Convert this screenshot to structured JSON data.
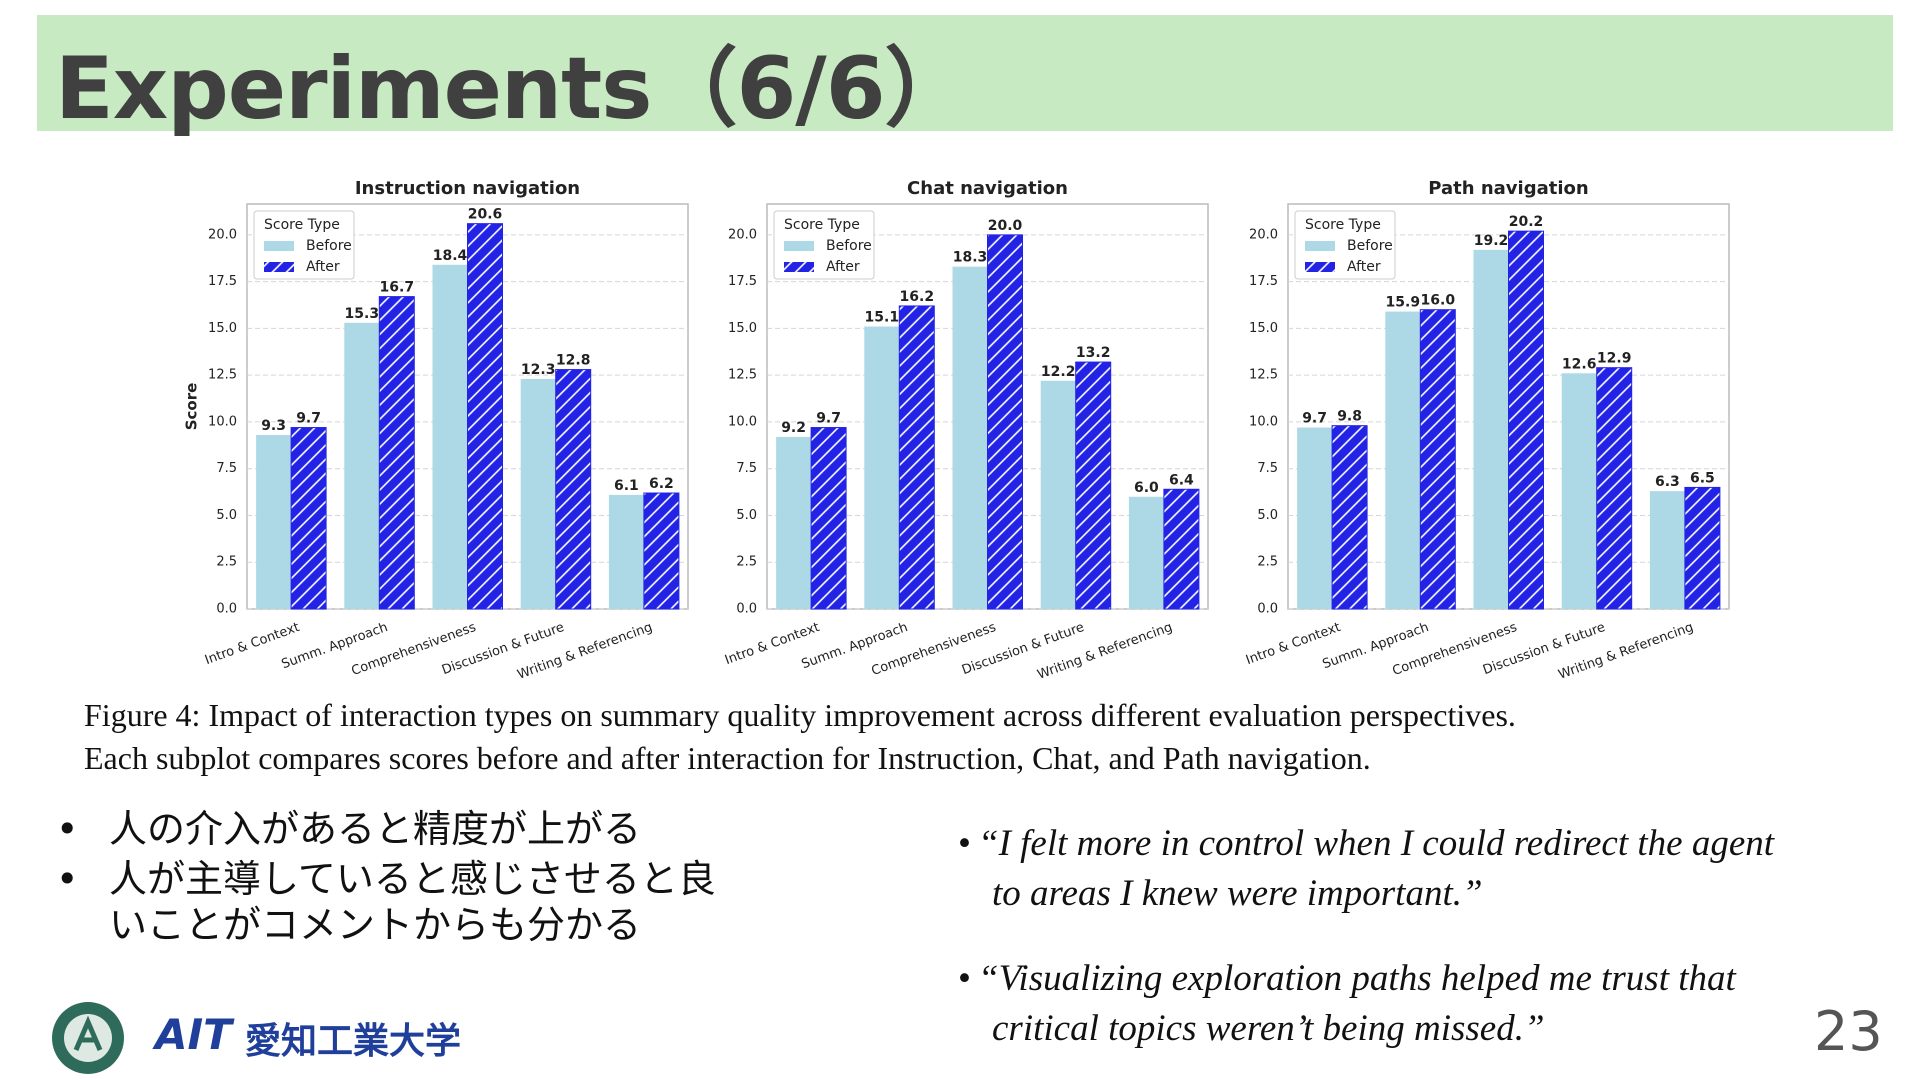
{
  "title": "Experiments（6/6）",
  "chart_data": [
    {
      "type": "bar",
      "title": "Instruction navigation",
      "ylabel": "Score",
      "legend_title": "Score Type",
      "legend": "upper left",
      "grid": true,
      "categories": [
        "Intro & Context",
        "Summ. Approach",
        "Comprehensiveness",
        "Discussion & Future",
        "Writing & Referencing"
      ],
      "series": [
        {
          "name": "Before",
          "color": "#add8e6",
          "hatch": false,
          "values": [
            9.3,
            15.3,
            18.4,
            12.3,
            6.1
          ],
          "value_labels": [
            "9.3",
            "15.3",
            "18.4",
            "12.3",
            "6.1"
          ]
        },
        {
          "name": "After",
          "color": "#2323e6",
          "hatch": true,
          "values": [
            9.7,
            16.7,
            20.6,
            12.8,
            6.2
          ],
          "value_labels": [
            "9.7",
            "16.7",
            "20.6",
            "12.8",
            "6.2"
          ]
        }
      ],
      "ylim": [
        0,
        21.65
      ],
      "yticks": [
        {
          "value": 0,
          "label": "0.0"
        },
        {
          "value": 2.5,
          "label": "2.5"
        },
        {
          "value": 5,
          "label": "5.0"
        },
        {
          "value": 7.5,
          "label": "7.5"
        },
        {
          "value": 10,
          "label": "10.0"
        },
        {
          "value": 12.5,
          "label": "12.5"
        },
        {
          "value": 15,
          "label": "15.0"
        },
        {
          "value": 17.5,
          "label": "17.5"
        },
        {
          "value": 20,
          "label": "20.0"
        }
      ]
    },
    {
      "type": "bar",
      "title": "Chat navigation",
      "legend_title": "Score Type",
      "legend": "upper left",
      "grid": true,
      "categories": [
        "Intro & Context",
        "Summ. Approach",
        "Comprehensiveness",
        "Discussion & Future",
        "Writing & Referencing"
      ],
      "series": [
        {
          "name": "Before",
          "color": "#add8e6",
          "hatch": false,
          "values": [
            9.2,
            15.1,
            18.3,
            12.2,
            6.0
          ],
          "value_labels": [
            "9.2",
            "15.1",
            "18.3",
            "12.2",
            "6.0"
          ]
        },
        {
          "name": "After",
          "color": "#2323e6",
          "hatch": true,
          "values": [
            9.7,
            16.2,
            20.0,
            13.2,
            6.4
          ],
          "value_labels": [
            "9.7",
            "16.2",
            "20.0",
            "13.2",
            "6.4"
          ]
        }
      ],
      "ylim": [
        0,
        21.65
      ],
      "yticks": [
        {
          "value": 0,
          "label": "0.0"
        },
        {
          "value": 2.5,
          "label": "2.5"
        },
        {
          "value": 5,
          "label": "5.0"
        },
        {
          "value": 7.5,
          "label": "7.5"
        },
        {
          "value": 10,
          "label": "10.0"
        },
        {
          "value": 12.5,
          "label": "12.5"
        },
        {
          "value": 15,
          "label": "15.0"
        },
        {
          "value": 17.5,
          "label": "17.5"
        },
        {
          "value": 20,
          "label": "20.0"
        }
      ]
    },
    {
      "type": "bar",
      "title": "Path navigation",
      "legend_title": "Score Type",
      "legend": "upper left",
      "grid": true,
      "categories": [
        "Intro & Context",
        "Summ. Approach",
        "Comprehensiveness",
        "Discussion & Future",
        "Writing & Referencing"
      ],
      "series": [
        {
          "name": "Before",
          "color": "#add8e6",
          "hatch": false,
          "values": [
            9.7,
            15.9,
            19.2,
            12.6,
            6.3
          ],
          "value_labels": [
            "9.7",
            "15.9",
            "19.2",
            "12.6",
            "6.3"
          ]
        },
        {
          "name": "After",
          "color": "#2323e6",
          "hatch": true,
          "values": [
            9.8,
            16.0,
            20.2,
            12.9,
            6.5
          ],
          "value_labels": [
            "9.8",
            "16.0",
            "20.2",
            "12.9",
            "6.5"
          ]
        }
      ],
      "ylim": [
        0,
        21.65
      ],
      "yticks": [
        {
          "value": 0,
          "label": "0.0"
        },
        {
          "value": 2.5,
          "label": "2.5"
        },
        {
          "value": 5,
          "label": "5.0"
        },
        {
          "value": 7.5,
          "label": "7.5"
        },
        {
          "value": 10,
          "label": "10.0"
        },
        {
          "value": 12.5,
          "label": "12.5"
        },
        {
          "value": 15,
          "label": "15.0"
        },
        {
          "value": 17.5,
          "label": "17.5"
        },
        {
          "value": 20,
          "label": "20.0"
        }
      ]
    }
  ],
  "caption": [
    "Figure 4: Impact of interaction types on summary quality improvement across different evaluation perspectives.",
    "Each subplot compares scores before and after interaction for Instruction, Chat, and Path navigation."
  ],
  "bullets": [
    "人の介入があると精度が上がる",
    "人が主導していると感じさせると良いことがコメントからも分かる"
  ],
  "quotes": [
    "“I felt more in control when I could redirect the agent to areas I knew were important.”",
    "“Visualizing exploration paths helped me trust that critical topics weren’t being missed.”"
  ],
  "logo": {
    "abbr": "AIT",
    "name": "愛知工業大学"
  },
  "page_number": "23"
}
